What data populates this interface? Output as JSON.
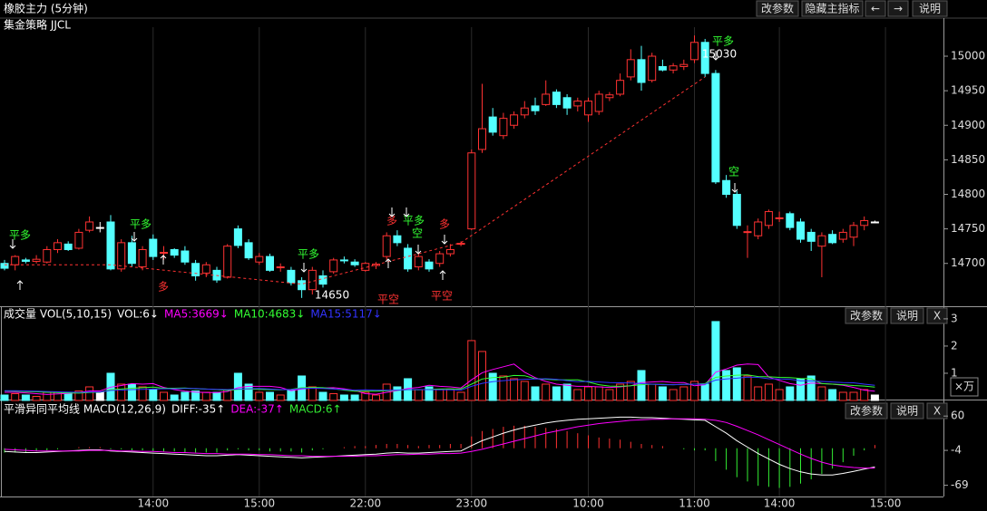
{
  "toolbar": {
    "buttons": [
      "改参数",
      "隐藏主指标",
      "←",
      "→",
      "说明"
    ]
  },
  "panels": [
    {
      "buttons": [
        "改参数",
        "说明",
        "X"
      ],
      "unit": "×万"
    },
    {
      "buttons": [
        "改参数",
        "说明",
        "X"
      ]
    }
  ],
  "chart_data": [
    {
      "type": "candlestick",
      "title": "橡胶主力 (5分钟)",
      "subtitle": "集金策略 JJCL",
      "categories": [
        null,
        null,
        null,
        null,
        null,
        null,
        null,
        null,
        null,
        null,
        null,
        null,
        null,
        null,
        "14:00",
        null,
        null,
        null,
        null,
        null,
        null,
        null,
        null,
        null,
        "15:00",
        null,
        null,
        null,
        null,
        null,
        null,
        null,
        null,
        null,
        "22:00",
        null,
        null,
        null,
        null,
        null,
        null,
        null,
        null,
        null,
        "23:00",
        null,
        null,
        null,
        null,
        null,
        null,
        null,
        null,
        null,
        null,
        "10:00",
        null,
        null,
        null,
        null,
        null,
        null,
        null,
        null,
        null,
        "11:00",
        null,
        null,
        null,
        null,
        null,
        null,
        null,
        "14:00",
        null,
        null,
        null,
        null,
        null,
        null,
        null,
        null,
        null,
        "15:00"
      ],
      "open": [
        14700,
        14698,
        14705,
        14703,
        14702,
        14720,
        14728,
        14722,
        14748,
        14752,
        14760,
        14692,
        14730,
        14695,
        14735,
        14715,
        14720,
        14718,
        14700,
        14686,
        14690,
        14680,
        14750,
        14730,
        14702,
        14710,
        14694,
        14690,
        14675,
        14662,
        14682,
        14688,
        14705,
        14702,
        14690,
        14697,
        14710,
        14740,
        14722,
        14695,
        14702,
        14700,
        14714,
        14728,
        14750,
        14865,
        14912,
        14885,
        14900,
        14915,
        14928,
        14930,
        14948,
        14940,
        14928,
        14915,
        14920,
        14940,
        14945,
        14970,
        14995,
        14965,
        14985,
        14980,
        14985,
        14995,
        15020,
        14975,
        14820,
        14800,
        14745,
        14740,
        14755,
        14765,
        14772,
        14760,
        14745,
        14725,
        14742,
        14735,
        14738,
        14755,
        14760,
        null
      ],
      "high": [
        14705,
        14712,
        14708,
        14712,
        14725,
        14735,
        14732,
        14750,
        14768,
        14760,
        14770,
        14735,
        14740,
        14725,
        14742,
        14725,
        14722,
        14725,
        14705,
        14702,
        14695,
        14728,
        14755,
        14735,
        14715,
        14714,
        14700,
        14695,
        14680,
        14695,
        14690,
        14708,
        14710,
        14706,
        14702,
        14702,
        14745,
        14748,
        14728,
        14715,
        14706,
        14718,
        14728,
        14732,
        14865,
        14960,
        14925,
        14918,
        14920,
        14935,
        14940,
        14965,
        14952,
        14945,
        14940,
        14940,
        14950,
        14948,
        14975,
        15010,
        15015,
        15005,
        14995,
        14990,
        14995,
        15030,
        15025,
        14980,
        14828,
        14805,
        14755,
        14765,
        14778,
        14775,
        14775,
        14765,
        14750,
        14745,
        14748,
        14750,
        14760,
        14768,
        14762,
        null
      ],
      "low": [
        14690,
        14690,
        14700,
        14700,
        14700,
        14715,
        14718,
        14720,
        14745,
        14745,
        14690,
        14688,
        14695,
        14690,
        14705,
        14705,
        14708,
        14698,
        14675,
        14680,
        14672,
        14678,
        14722,
        14705,
        14698,
        14688,
        14688,
        14668,
        14650,
        14655,
        14665,
        14685,
        14700,
        14695,
        14688,
        14692,
        14705,
        14725,
        14688,
        14690,
        14688,
        14695,
        14710,
        14725,
        14748,
        14860,
        14885,
        14880,
        14895,
        14910,
        14915,
        14928,
        14925,
        14915,
        14920,
        14905,
        14915,
        14935,
        14942,
        14965,
        14950,
        14962,
        14978,
        14975,
        14980,
        14990,
        14970,
        14815,
        14795,
        14750,
        14708,
        14735,
        14750,
        14760,
        14748,
        14730,
        14718,
        14680,
        14728,
        14730,
        14725,
        14748,
        14758,
        null
      ],
      "close": [
        14693,
        14710,
        14703,
        14706,
        14720,
        14730,
        14720,
        14745,
        14760,
        14752,
        14692,
        14730,
        14700,
        14720,
        14710,
        14716,
        14712,
        14702,
        14682,
        14698,
        14676,
        14725,
        14726,
        14708,
        14710,
        14690,
        14695,
        14672,
        14662,
        14690,
        14670,
        14705,
        14704,
        14698,
        14700,
        14699,
        14740,
        14730,
        14692,
        14710,
        14692,
        14714,
        14720,
        14729,
        14860,
        14895,
        14890,
        14910,
        14915,
        14925,
        14921,
        14945,
        14930,
        14925,
        14935,
        14935,
        14945,
        14944,
        14965,
        14995,
        14962,
        15000,
        14980,
        14986,
        14988,
        15020,
        14975,
        14818,
        14800,
        14755,
        14746,
        14760,
        14775,
        14766,
        14752,
        14735,
        14732,
        14740,
        14730,
        14745,
        14755,
        14762,
        14760,
        null
      ],
      "up_color": "#ff3232",
      "down_color": "#54ffff",
      "flat_color": "#ffffff",
      "ylim": [
        14638,
        15042
      ],
      "yticks": [
        14700,
        14750,
        14800,
        14850,
        14900,
        14950,
        15000
      ],
      "signal_line": {
        "color": "#ff3232",
        "x": [
          0,
          10,
          28,
          43,
          66
        ],
        "values": [
          14698,
          14698,
          14670,
          14730,
          14970
        ]
      },
      "annotations": [
        {
          "text": "平多",
          "color": "#33ff33"
        },
        {
          "text": "平多",
          "color": "#33ff33"
        },
        {
          "text": "多",
          "color": "#ff3232"
        },
        {
          "text": "平多",
          "color": "#33ff33"
        },
        {
          "text": "14650",
          "color": "#ffffff"
        },
        {
          "text": "平空",
          "color": "#ff3232"
        },
        {
          "text": "多",
          "color": "#ff3232"
        },
        {
          "text": "平多",
          "color": "#33ff33"
        },
        {
          "text": "空",
          "color": "#33ff33"
        },
        {
          "text": "平空",
          "color": "#ff3232"
        },
        {
          "text": "多",
          "color": "#ff3232"
        },
        {
          "text": "平多",
          "color": "#33ff33"
        },
        {
          "text": "15030",
          "color": "#ffffff"
        },
        {
          "text": "空",
          "color": "#33ff33"
        }
      ]
    },
    {
      "type": "volume",
      "title": "成交量 VOL(5,10,15)",
      "ylim": [
        0,
        3.33
      ],
      "yticks": [
        1,
        2,
        3
      ],
      "series": [
        {
          "name": "VOL:6↓",
          "color": "#ffffff",
          "values": [
            0.2,
            0.25,
            0.2,
            0.15,
            0.3,
            0.3,
            0.3,
            0.35,
            0.5,
            0.3,
            1.0,
            0.6,
            0.6,
            0.5,
            0.4,
            0.3,
            0.2,
            0.3,
            0.35,
            0.3,
            0.3,
            0.4,
            1.0,
            0.6,
            0.3,
            0.3,
            0.2,
            0.4,
            0.9,
            0.5,
            0.3,
            0.25,
            0.2,
            0.2,
            0.3,
            0.2,
            0.6,
            0.5,
            0.8,
            0.4,
            0.5,
            0.4,
            0.4,
            0.3,
            2.2,
            1.8,
            1.0,
            0.9,
            0.8,
            0.7,
            0.5,
            0.6,
            0.5,
            0.6,
            0.4,
            0.5,
            0.5,
            0.4,
            0.6,
            0.7,
            1.1,
            0.6,
            0.5,
            0.4,
            0.5,
            0.7,
            0.6,
            2.9,
            1.1,
            1.2,
            0.9,
            0.5,
            0.6,
            0.4,
            0.5,
            0.8,
            0.9,
            0.5,
            0.4,
            0.3,
            0.3,
            0.4,
            0.2,
            null
          ]
        },
        {
          "name": "MA5:3669↓",
          "color": "#ff00ff",
          "values": [
            0.3,
            0.3,
            0.28,
            0.25,
            0.22,
            0.24,
            0.26,
            0.29,
            0.35,
            0.35,
            0.49,
            0.55,
            0.62,
            0.6,
            0.62,
            0.48,
            0.4,
            0.34,
            0.31,
            0.29,
            0.29,
            0.33,
            0.47,
            0.52,
            0.52,
            0.52,
            0.48,
            0.36,
            0.42,
            0.46,
            0.46,
            0.47,
            0.43,
            0.37,
            0.25,
            0.23,
            0.3,
            0.36,
            0.44,
            0.48,
            0.56,
            0.52,
            0.5,
            0.46,
            0.76,
            1.02,
            1.14,
            1.24,
            1.34,
            1.04,
            0.84,
            0.7,
            0.6,
            0.56,
            0.52,
            0.52,
            0.5,
            0.48,
            0.5,
            0.54,
            0.66,
            0.68,
            0.7,
            0.66,
            0.66,
            0.54,
            0.58,
            1.04,
            1.16,
            1.3,
            1.34,
            1.32,
            0.86,
            0.74,
            0.62,
            0.56,
            0.64,
            0.62,
            0.6,
            0.56,
            0.48,
            0.38,
            0.34,
            null
          ]
        },
        {
          "name": "MA10:4683↓",
          "color": "#33ff33",
          "values": [
            0.35,
            0.34,
            0.33,
            0.32,
            0.3,
            0.29,
            0.28,
            0.27,
            0.29,
            0.3,
            0.4,
            0.42,
            0.45,
            0.47,
            0.49,
            0.45,
            0.45,
            0.46,
            0.43,
            0.42,
            0.4,
            0.37,
            0.41,
            0.42,
            0.41,
            0.4,
            0.39,
            0.41,
            0.47,
            0.48,
            0.47,
            0.43,
            0.38,
            0.34,
            0.34,
            0.34,
            0.36,
            0.37,
            0.4,
            0.39,
            0.41,
            0.42,
            0.43,
            0.42,
            0.6,
            0.79,
            0.84,
            0.86,
            0.92,
            0.91,
            0.8,
            0.78,
            0.76,
            0.76,
            0.76,
            0.68,
            0.58,
            0.53,
            0.52,
            0.54,
            0.58,
            0.6,
            0.59,
            0.58,
            0.59,
            0.6,
            0.62,
            0.85,
            0.9,
            0.93,
            0.94,
            0.88,
            0.87,
            0.85,
            0.84,
            0.81,
            0.8,
            0.62,
            0.6,
            0.58,
            0.55,
            0.53,
            0.49,
            null
          ]
        },
        {
          "name": "MA15:5117↓",
          "color": "#3333ff",
          "values": [
            0.36,
            0.36,
            0.35,
            0.34,
            0.33,
            0.32,
            0.31,
            0.3,
            0.31,
            0.31,
            0.37,
            0.38,
            0.4,
            0.41,
            0.42,
            0.43,
            0.43,
            0.44,
            0.44,
            0.42,
            0.41,
            0.4,
            0.42,
            0.43,
            0.44,
            0.42,
            0.4,
            0.4,
            0.44,
            0.45,
            0.44,
            0.42,
            0.4,
            0.38,
            0.39,
            0.38,
            0.38,
            0.38,
            0.4,
            0.4,
            0.4,
            0.39,
            0.39,
            0.38,
            0.52,
            0.63,
            0.69,
            0.73,
            0.76,
            0.78,
            0.79,
            0.8,
            0.78,
            0.73,
            0.69,
            0.7,
            0.68,
            0.66,
            0.65,
            0.64,
            0.62,
            0.6,
            0.58,
            0.58,
            0.59,
            0.6,
            0.6,
            0.75,
            0.79,
            0.82,
            0.86,
            0.85,
            0.8,
            0.79,
            0.78,
            0.72,
            0.72,
            0.7,
            0.68,
            0.66,
            0.65,
            0.6,
            0.56,
            null
          ]
        }
      ]
    },
    {
      "type": "macd",
      "title": "平滑异同平均线 MACD(12,26,9)",
      "ylim": [
        -90,
        84
      ],
      "yticks": [
        60,
        -4,
        -69
      ],
      "up_color": "#ff3232",
      "down_color": "#33ee33",
      "series": [
        {
          "name": "DIFF:-35↑",
          "color": "#ffffff",
          "values": [
            -6,
            -7,
            -8,
            -8,
            -7,
            -6,
            -5,
            -4,
            -3,
            -3,
            -5,
            -6,
            -7,
            -8,
            -9,
            -10,
            -11,
            -12,
            -13,
            -14,
            -14,
            -13,
            -12,
            -13,
            -14,
            -15,
            -16,
            -17,
            -18,
            -17,
            -16,
            -15,
            -14,
            -13,
            -12,
            -11,
            -9,
            -8,
            -9,
            -9,
            -8,
            -7,
            -6,
            -5,
            5,
            14,
            21,
            28,
            34,
            39,
            43,
            47,
            50,
            52,
            54,
            55,
            56,
            57,
            58,
            58,
            57,
            57,
            56,
            55,
            54,
            53,
            52,
            40,
            28,
            14,
            2,
            -10,
            -20,
            -30,
            -38,
            -44,
            -48,
            -50,
            -50,
            -47,
            -43,
            -39,
            -35,
            null
          ]
        },
        {
          "name": "DEA:-37↑",
          "color": "#ff00ff",
          "values": [
            -2,
            -3,
            -4,
            -5,
            -5,
            -5,
            -5,
            -5,
            -4,
            -4,
            -4,
            -5,
            -5,
            -6,
            -6,
            -7,
            -8,
            -8,
            -9,
            -10,
            -10,
            -11,
            -11,
            -11,
            -12,
            -12,
            -13,
            -14,
            -14,
            -15,
            -15,
            -15,
            -15,
            -15,
            -14,
            -14,
            -13,
            -12,
            -12,
            -11,
            -11,
            -10,
            -10,
            -9,
            -6,
            -2,
            3,
            8,
            13,
            18,
            23,
            28,
            32,
            36,
            40,
            43,
            46,
            48,
            50,
            52,
            53,
            54,
            54,
            55,
            55,
            55,
            54,
            52,
            48,
            41,
            33,
            25,
            16,
            7,
            -2,
            -11,
            -19,
            -26,
            -31,
            -34,
            -36,
            -37,
            -37,
            null
          ]
        },
        {
          "name": "MACD:6↑",
          "color": "#33ee33",
          "values": [
            -8,
            -8,
            -8,
            -6,
            -4,
            -2,
            0,
            2,
            2,
            2,
            -2,
            -2,
            -4,
            -4,
            -6,
            -6,
            -6,
            -8,
            -8,
            -8,
            -8,
            -4,
            -2,
            -4,
            -4,
            -6,
            -6,
            -6,
            -8,
            -4,
            -2,
            0,
            2,
            4,
            4,
            6,
            8,
            8,
            6,
            4,
            6,
            6,
            8,
            8,
            22,
            32,
            36,
            40,
            42,
            42,
            40,
            38,
            36,
            32,
            28,
            24,
            20,
            18,
            16,
            12,
            8,
            6,
            4,
            0,
            -2,
            -4,
            -4,
            -24,
            -40,
            -54,
            -62,
            -70,
            -72,
            -74,
            -72,
            -66,
            -58,
            -48,
            -38,
            -26,
            -14,
            -4,
            6,
            null
          ]
        }
      ]
    }
  ]
}
